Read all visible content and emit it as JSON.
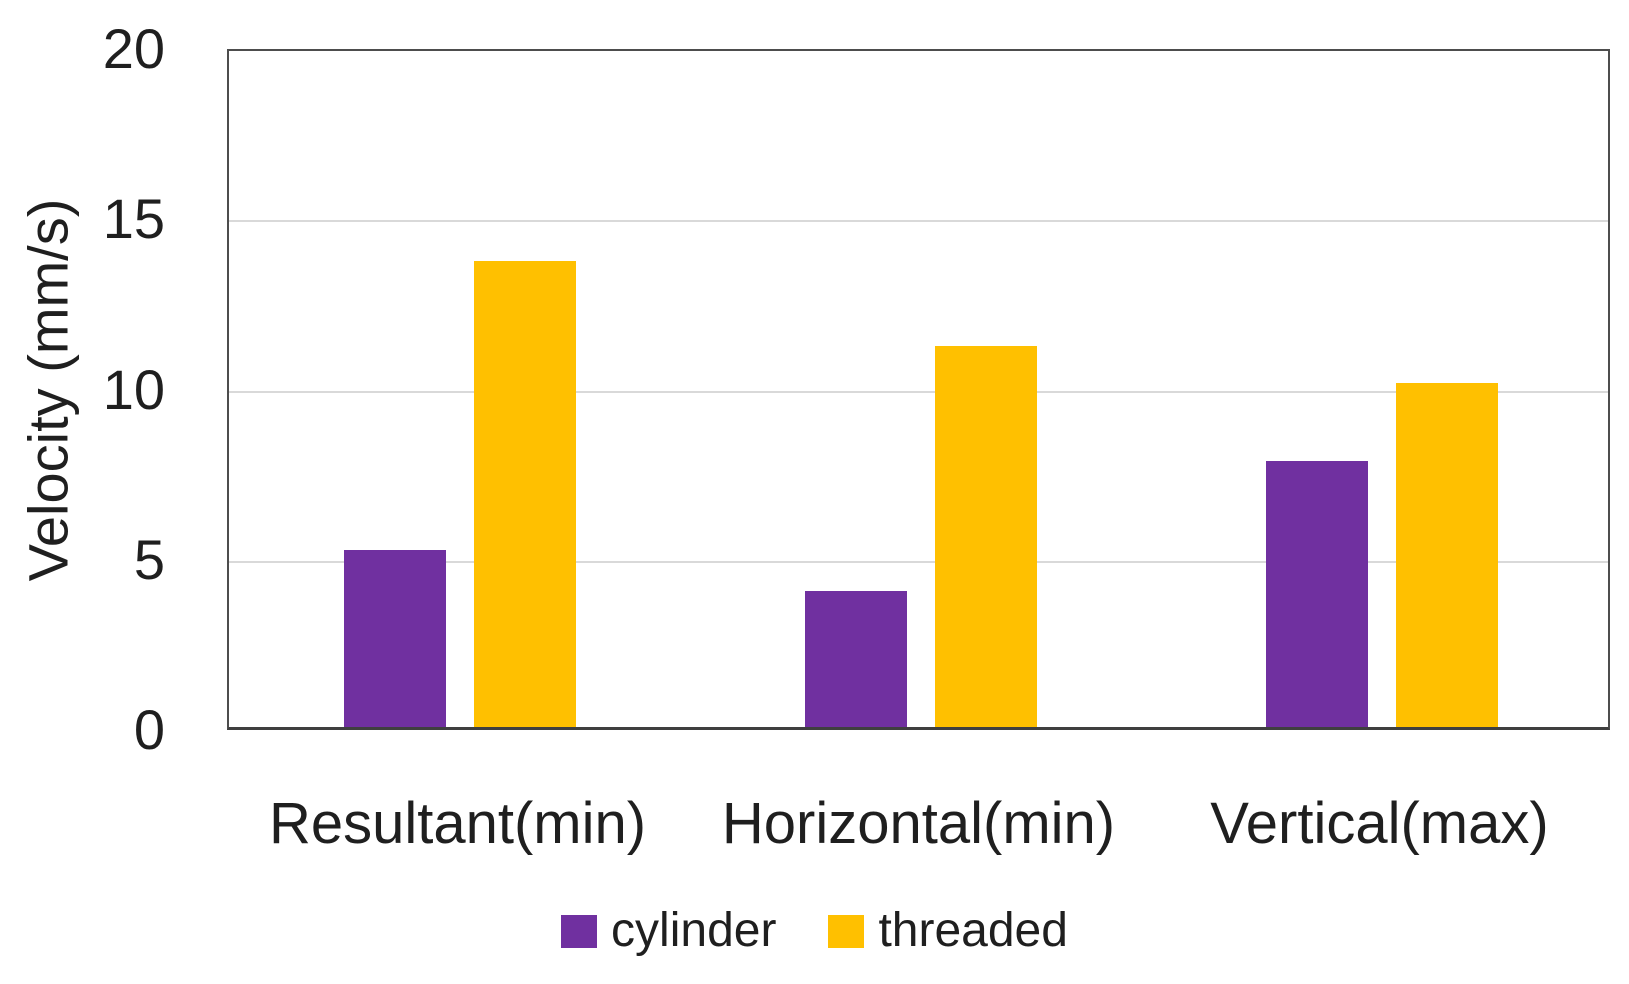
{
  "chart_data": {
    "type": "bar",
    "categories": [
      "Resultant(min)",
      "Horizontal(min)",
      "Vertical(max)"
    ],
    "series": [
      {
        "name": "cylinder",
        "color": "#7030A0",
        "values": [
          5.2,
          4.0,
          7.8
        ]
      },
      {
        "name": "threaded",
        "color": "#FFC000",
        "values": [
          13.7,
          11.2,
          10.1
        ]
      }
    ],
    "title": "",
    "xlabel": "",
    "ylabel": "Velocity (mm/s)",
    "ylim": [
      0,
      20
    ],
    "yticks": [
      0,
      5,
      10,
      15,
      20
    ],
    "grid": "horizontal",
    "legend_position": "bottom",
    "legend": [
      "cylinder",
      "threaded"
    ]
  },
  "colors": {
    "axis_frame": "#4d4d4d",
    "gridline": "#d9d9d9",
    "text": "#1f1f1f",
    "background": "#ffffff"
  }
}
